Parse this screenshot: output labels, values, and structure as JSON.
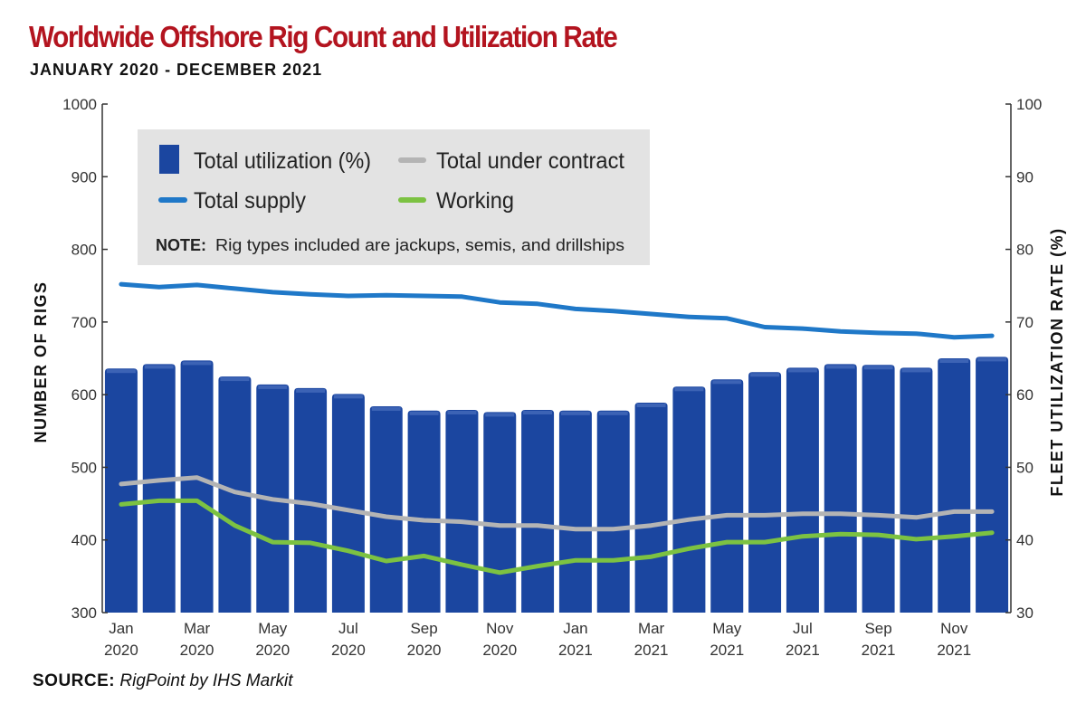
{
  "chart_data": {
    "type": "bar+line",
    "title": "Worldwide Offshore Rig Count and Utilization Rate",
    "subtitle": "JANUARY 2020 - DECEMBER 2021",
    "ylabel_left": "NUMBER OF RIGS",
    "ylabel_right": "FLEET UTILIZATION RATE (%)",
    "ylim_left": [
      300,
      1000
    ],
    "ylim_right": [
      30,
      100
    ],
    "yticks_left": [
      "1000",
      "900",
      "800",
      "700",
      "600",
      "500",
      "400",
      "300"
    ],
    "yticks_right": [
      "100",
      "90",
      "80",
      "70",
      "60",
      "50",
      "40",
      "30"
    ],
    "xtick_labels": [
      [
        "Jan",
        "2020"
      ],
      [
        "Mar",
        "2020"
      ],
      [
        "May",
        "2020"
      ],
      [
        "Jul",
        "2020"
      ],
      [
        "Sep",
        "2020"
      ],
      [
        "Nov",
        "2020"
      ],
      [
        "Jan",
        "2021"
      ],
      [
        "Mar",
        "2021"
      ],
      [
        "May",
        "2021"
      ],
      [
        "Jul",
        "2021"
      ],
      [
        "Sep",
        "2021"
      ],
      [
        "Nov",
        "2021"
      ]
    ],
    "categories": [
      "Jan 2020",
      "Feb 2020",
      "Mar 2020",
      "Apr 2020",
      "May 2020",
      "Jun 2020",
      "Jul 2020",
      "Aug 2020",
      "Sep 2020",
      "Oct 2020",
      "Nov 2020",
      "Dec 2020",
      "Jan 2021",
      "Feb 2021",
      "Mar 2021",
      "Apr 2021",
      "May 2021",
      "Jun 2021",
      "Jul 2021",
      "Aug 2021",
      "Sep 2021",
      "Oct 2021",
      "Nov 2021",
      "Dec 2021"
    ],
    "series": [
      {
        "name": "Total utilization (%)",
        "kind": "bar",
        "axis": "right",
        "color": "#1b46a0",
        "values": [
          63.6,
          64.2,
          64.7,
          62.5,
          61.4,
          60.9,
          60.1,
          58.4,
          57.8,
          57.9,
          57.6,
          57.9,
          57.8,
          57.8,
          58.9,
          61.1,
          62.1,
          63.1,
          63.7,
          64.2,
          64.1,
          63.7,
          65.0,
          65.2
        ]
      },
      {
        "name": "Total under contract",
        "kind": "line",
        "axis": "left",
        "color": "#b4b4b4",
        "values": [
          477,
          482,
          486,
          466,
          456,
          450,
          441,
          432,
          427,
          425,
          420,
          420,
          415,
          415,
          420,
          428,
          434,
          434,
          436,
          436,
          434,
          431,
          439,
          439
        ]
      },
      {
        "name": "Total supply",
        "kind": "line",
        "axis": "left",
        "color": "#1f78c8",
        "values": [
          752,
          748,
          751,
          746,
          741,
          738,
          736,
          737,
          736,
          735,
          727,
          725,
          718,
          715,
          711,
          707,
          705,
          693,
          691,
          687,
          685,
          684,
          679,
          681
        ]
      },
      {
        "name": "Working",
        "kind": "line",
        "axis": "left",
        "color": "#7cc242",
        "values": [
          449,
          454,
          454,
          420,
          397,
          396,
          385,
          371,
          378,
          366,
          355,
          364,
          372,
          372,
          377,
          388,
          397,
          397,
          405,
          408,
          407,
          401,
          405,
          410
        ]
      }
    ],
    "note_label": "NOTE:",
    "note_text": "Rig types included are jackups, semis, and drillships",
    "legend_position": "top-center",
    "grid": false
  },
  "source_label": "SOURCE:",
  "source_text": "RigPoint by IHS Markit"
}
